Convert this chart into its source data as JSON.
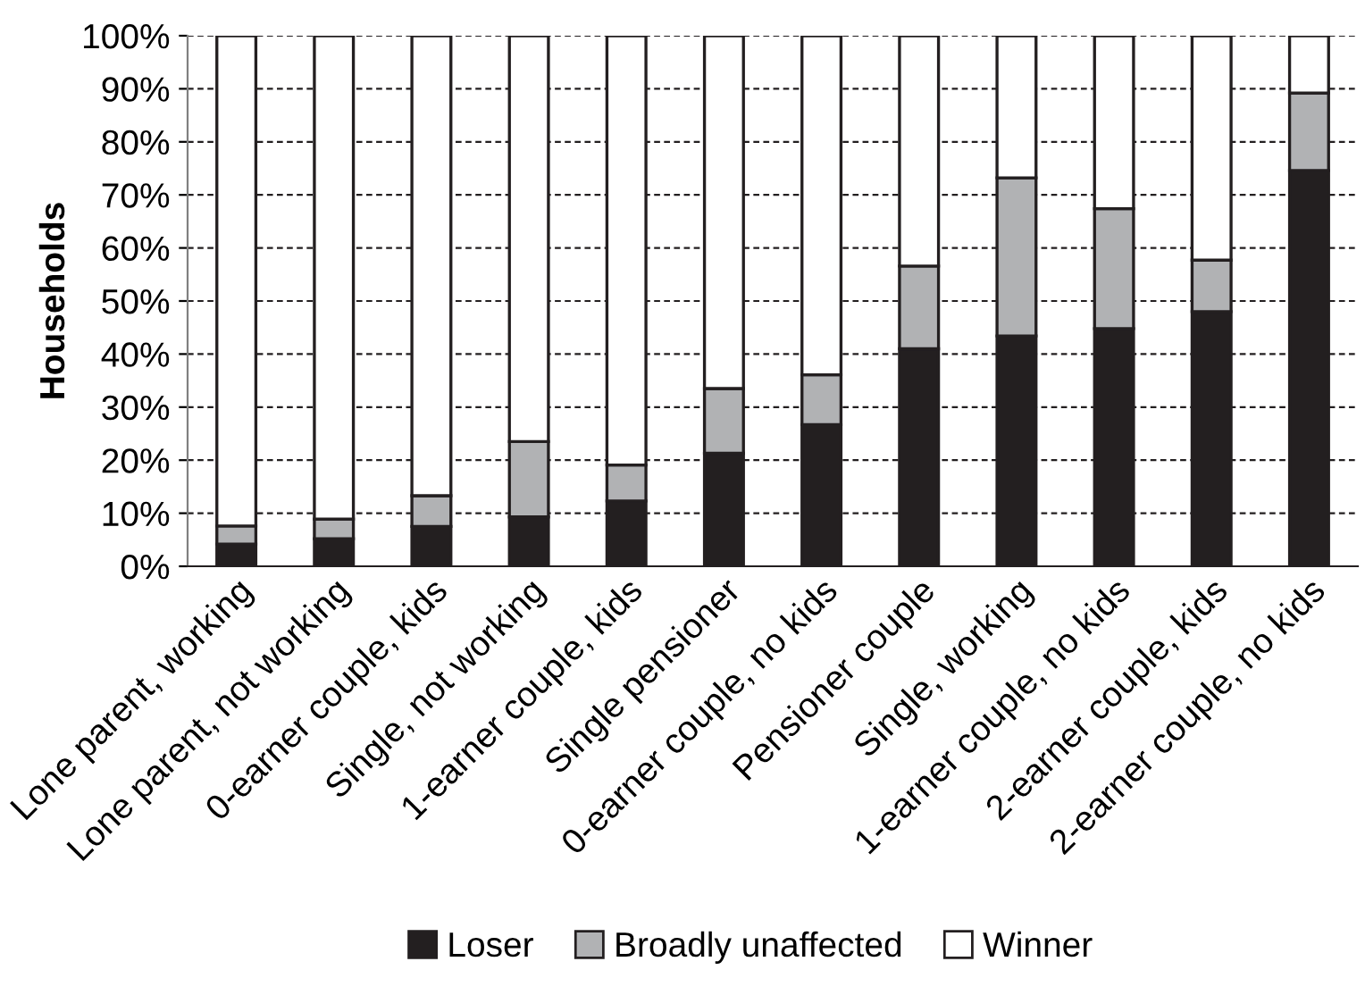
{
  "chart_data": {
    "type": "bar",
    "stacked": true,
    "ylabel": "Households",
    "categories": [
      "Lone parent, working",
      "Lone parent, not working",
      "0-earner couple, kids",
      "Single, not working",
      "1-earner couple, kids",
      "Single pensioner",
      "0-earner couple, no kids",
      "Pensioner couple",
      "Single, working",
      "1-earner couple, no kids",
      "2-earner couple, kids",
      "2-earner couple, no kids"
    ],
    "series": [
      {
        "name": "Loser",
        "color": "#231f20",
        "values": [
          4.2,
          5.2,
          7.5,
          9.3,
          12.3,
          21.3,
          26.7,
          41,
          43.4,
          44.8,
          48,
          74.6
        ]
      },
      {
        "name": "Broadly unaffected",
        "color": "#b1b2b4",
        "values": [
          3.4,
          3.7,
          5.8,
          14.2,
          6.8,
          12.2,
          9.4,
          15.6,
          29.8,
          22.6,
          9.7,
          14.6
        ]
      },
      {
        "name": "Winner",
        "color": "#ffffff",
        "values": [
          92.4,
          91.1,
          86.7,
          76.5,
          80.9,
          66.5,
          63.9,
          43.4,
          26.8,
          32.6,
          42.3,
          10.8
        ]
      }
    ],
    "ylim": [
      0,
      100
    ],
    "yticks": [
      {
        "value": 0,
        "label": "0%"
      },
      {
        "value": 10,
        "label": "10%"
      },
      {
        "value": 20,
        "label": "20%"
      },
      {
        "value": 30,
        "label": "30%"
      },
      {
        "value": 40,
        "label": "40%"
      },
      {
        "value": 50,
        "label": "50%"
      },
      {
        "value": 60,
        "label": "60%"
      },
      {
        "value": 70,
        "label": "70%"
      },
      {
        "value": 80,
        "label": "80%"
      },
      {
        "value": 90,
        "label": "90%"
      },
      {
        "value": 100,
        "label": "100%"
      }
    ],
    "grid": "y",
    "legend": "bottom"
  }
}
